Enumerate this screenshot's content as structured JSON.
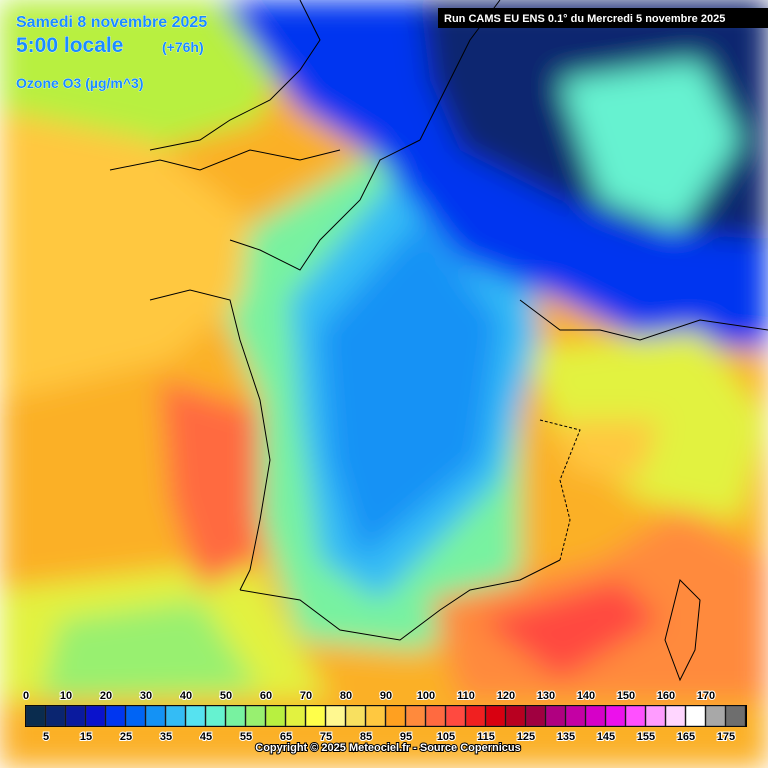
{
  "header": {
    "date": "Samedi 8 novembre 2025",
    "time": "5:00 locale",
    "lead": "(+76h)",
    "field": "Ozone O3 (µg/m^3)",
    "run": "Run CAMS EU ENS 0.1° du Mercredi 5 novembre 2025"
  },
  "legend": {
    "upper_labels": [
      "0",
      "10",
      "20",
      "30",
      "40",
      "50",
      "60",
      "70",
      "80",
      "90",
      "100",
      "110",
      "120",
      "130",
      "140",
      "150",
      "160",
      "170"
    ],
    "lower_labels": [
      "5",
      "15",
      "25",
      "35",
      "45",
      "55",
      "65",
      "75",
      "85",
      "95",
      "105",
      "115",
      "125",
      "135",
      "145",
      "155",
      "165",
      "175"
    ],
    "colors": [
      "#0a2c4e",
      "#0a2570",
      "#0a1a9e",
      "#0a12cc",
      "#0036f0",
      "#0064f5",
      "#1492f5",
      "#34bcf5",
      "#56e2f0",
      "#66f2d0",
      "#78f2a0",
      "#98f070",
      "#b8f040",
      "#e2f240",
      "#ffff4a",
      "#fff890",
      "#f8e060",
      "#ffc840",
      "#ffa020",
      "#ff8a3c",
      "#ff6a40",
      "#ff4a40",
      "#f02020",
      "#d80010",
      "#b80020",
      "#a00040",
      "#b00080",
      "#c400a4",
      "#d600c8",
      "#ec10ec",
      "#ff50ff",
      "#ff9cff",
      "#ffd6ff",
      "#ffffff",
      "#a8a8a8",
      "#6e6e6e"
    ]
  },
  "footer": {
    "copyright": "Copyright © 2025 Meteociel.fr - Source Copernicus"
  }
}
